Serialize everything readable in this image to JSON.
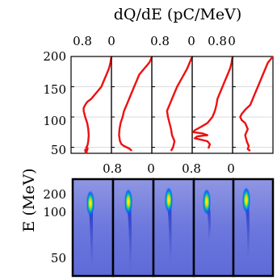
{
  "figure": {
    "top_xlabel": "dQ/dE (pC/MeV)",
    "ylabel": "E (MeV)"
  },
  "chart_data": [
    {
      "type": "line",
      "title": "",
      "xlabel": "dQ/dE (pC/MeV)",
      "ylabel": "E (MeV)",
      "xlim": [
        0.8,
        0
      ],
      "ylim": [
        40,
        200
      ],
      "x_ticks": [
        "0.8",
        "0",
        "0.8",
        "0",
        "0.8",
        "0"
      ],
      "y_ticks": [
        "50",
        "100",
        "150",
        "200"
      ],
      "grid": true,
      "line_color": "#ee1111",
      "panels": [
        {
          "x": [
            0.0,
            0.02,
            0.05,
            0.1,
            0.15,
            0.2,
            0.25,
            0.3,
            0.35,
            0.4,
            0.48,
            0.52,
            0.55,
            0.55,
            0.52,
            0.48,
            0.46,
            0.45,
            0.46,
            0.47,
            0.48,
            0.5,
            0.47,
            0.52,
            0.48,
            0.52,
            0.49,
            0.51,
            0.48
          ],
          "y": [
            200,
            190,
            180,
            170,
            160,
            150,
            145,
            140,
            135,
            130,
            125,
            120,
            115,
            110,
            100,
            90,
            80,
            70,
            60,
            55,
            52,
            50,
            48,
            46,
            45,
            44,
            43,
            42,
            40
          ]
        },
        {
          "x": [
            0.0,
            0.02,
            0.05,
            0.1,
            0.15,
            0.2,
            0.25,
            0.3,
            0.35,
            0.4,
            0.45,
            0.5,
            0.55,
            0.58,
            0.62,
            0.64,
            0.65,
            0.63,
            0.6,
            0.55,
            0.5,
            0.45,
            0.42,
            0.4
          ],
          "y": [
            200,
            195,
            190,
            185,
            180,
            175,
            170,
            160,
            150,
            140,
            130,
            120,
            110,
            100,
            90,
            80,
            70,
            60,
            55,
            52,
            50,
            48,
            46,
            44
          ]
        },
        {
          "x": [
            0.0,
            0.05,
            0.1,
            0.2,
            0.3,
            0.35,
            0.4,
            0.45,
            0.5,
            0.48,
            0.45,
            0.42,
            0.4,
            0.35,
            0.38,
            0.42
          ],
          "y": [
            200,
            190,
            180,
            165,
            150,
            140,
            130,
            120,
            110,
            100,
            90,
            80,
            70,
            60,
            50,
            44
          ]
        },
        {
          "x": [
            0.0,
            0.02,
            0.05,
            0.1,
            0.15,
            0.2,
            0.25,
            0.3,
            0.32,
            0.35,
            0.4,
            0.5,
            0.6,
            0.75,
            0.78,
            0.6,
            0.5,
            0.7,
            0.75,
            0.5,
            0.45,
            0.48
          ],
          "y": [
            200,
            190,
            180,
            170,
            160,
            150,
            140,
            130,
            120,
            110,
            100,
            90,
            85,
            78,
            75,
            73,
            70,
            68,
            65,
            60,
            55,
            48
          ]
        },
        {
          "x": [
            0.0,
            0.1,
            0.2,
            0.3,
            0.35,
            0.4,
            0.45,
            0.55,
            0.62,
            0.65,
            0.62,
            0.55,
            0.5,
            0.55,
            0.52,
            0.48,
            0.5,
            0.45
          ],
          "y": [
            200,
            190,
            170,
            150,
            140,
            130,
            120,
            112,
            105,
            100,
            95,
            90,
            80,
            70,
            60,
            52,
            47,
            44
          ]
        }
      ]
    },
    {
      "type": "heatmap",
      "title": "",
      "ylabel": "E (MeV)",
      "y_ticks": [
        "200",
        "100",
        "50"
      ],
      "panels": 5,
      "colormap": "jet"
    }
  ]
}
